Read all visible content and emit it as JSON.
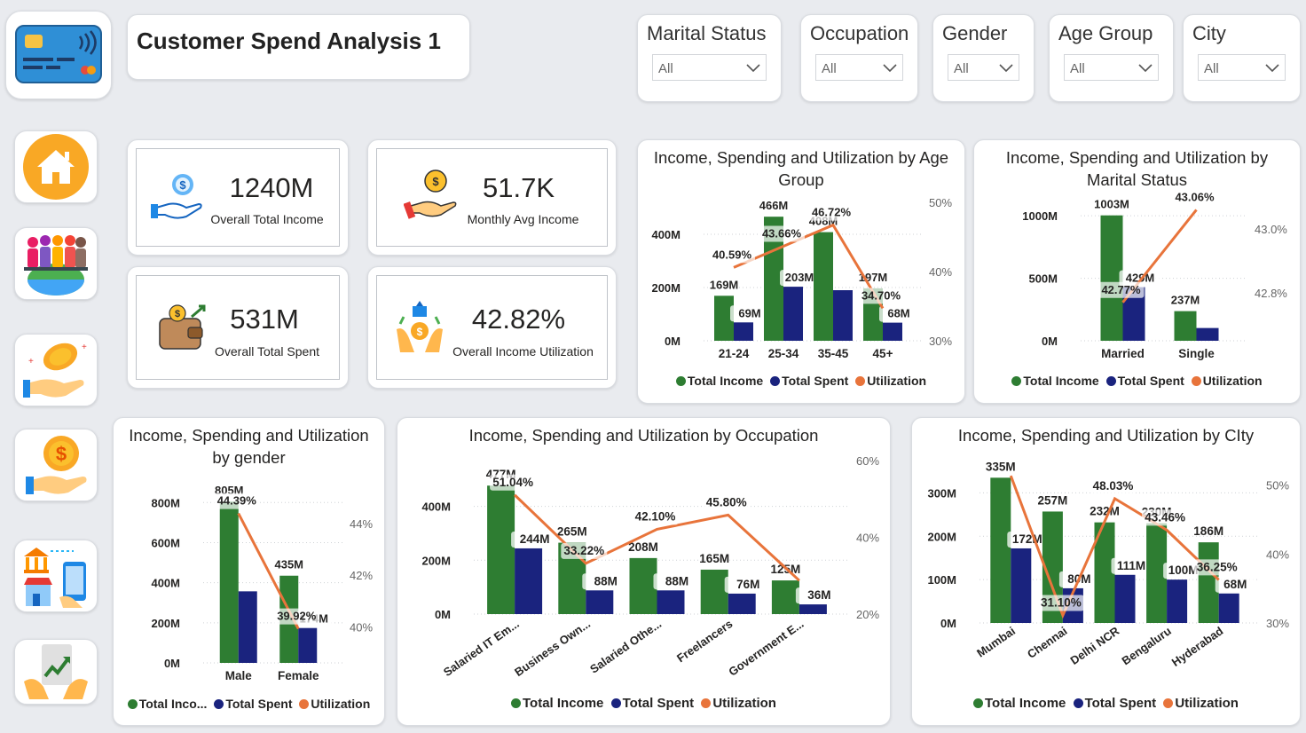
{
  "header": {
    "title": "Customer Spend Analysis 1"
  },
  "slicers": [
    {
      "label": "Marital Status",
      "value": "All"
    },
    {
      "label": "Occupation",
      "value": "All"
    },
    {
      "label": "Gender",
      "value": "All"
    },
    {
      "label": "Age Group",
      "value": "All"
    },
    {
      "label": "City",
      "value": "All"
    }
  ],
  "nav": [
    {
      "name": "credit-card-icon"
    },
    {
      "name": "home-icon"
    },
    {
      "name": "demographics-icon"
    },
    {
      "name": "coin-hand-icon"
    },
    {
      "name": "dollar-hand-icon"
    },
    {
      "name": "bank-mobile-icon"
    },
    {
      "name": "growth-chart-icon"
    }
  ],
  "kpis": [
    {
      "value": "1240M",
      "label": "Overall Total Income",
      "icon": "dollar-hand-icon"
    },
    {
      "value": "51.7K",
      "label": "Monthly Avg Income",
      "icon": "money-hand-icon"
    },
    {
      "value": "531M",
      "label": "Overall Total Spent",
      "icon": "wallet-icon"
    },
    {
      "value": "42.82%",
      "label": "Overall Income Utilization",
      "icon": "growth-hands-icon"
    }
  ],
  "legend": {
    "income": "Total Income",
    "spent": "Total Spent",
    "utilization": "Utilization",
    "income_short": "Total Inco..."
  },
  "colors": {
    "income": "#2e7d32",
    "spent": "#1a237e",
    "utilization": "#e8743b",
    "background": "#e9ebef"
  },
  "chart_data": [
    {
      "id": "age",
      "type": "bar",
      "title": "Income, Spending and Utilization by Age Group",
      "categories": [
        "21-24",
        "25-34",
        "35-45",
        "45+"
      ],
      "series": [
        {
          "name": "Total Income",
          "values": [
            169,
            466,
            408,
            197
          ],
          "labels": [
            "169M",
            "466M",
            "408M",
            "197M"
          ]
        },
        {
          "name": "Total Spent",
          "values": [
            69,
            203,
            190,
            68
          ],
          "labels": [
            "69M",
            "203M",
            "",
            "68M"
          ]
        },
        {
          "name": "Utilization",
          "type": "line",
          "values": [
            40.59,
            43.66,
            46.72,
            34.7
          ],
          "labels": [
            "40.59%",
            "43.66%",
            "46.72%",
            "34.70%"
          ]
        }
      ],
      "y_ticks": [
        "0M",
        "200M",
        "400M"
      ],
      "y2_ticks": [
        "30%",
        "40%",
        "50%"
      ],
      "ylim": [
        0,
        520
      ],
      "y2lim": [
        30,
        50
      ]
    },
    {
      "id": "marital",
      "type": "bar",
      "title": "Income, Spending and Utilization by Marital Status",
      "categories": [
        "Married",
        "Single"
      ],
      "series": [
        {
          "name": "Total Income",
          "values": [
            1003,
            237
          ],
          "labels": [
            "1003M",
            "237M"
          ]
        },
        {
          "name": "Total Spent",
          "values": [
            429,
            102
          ],
          "labels": [
            "429M",
            ""
          ]
        },
        {
          "name": "Utilization",
          "type": "line",
          "values": [
            42.77,
            43.06
          ],
          "labels": [
            "42.77%",
            "43.06%"
          ]
        }
      ],
      "y_ticks": [
        "0M",
        "500M",
        "1000M"
      ],
      "y2_ticks": [
        "42.8%",
        "43.0%"
      ],
      "ylim": [
        0,
        1150
      ],
      "y2lim": [
        42.65,
        43.1
      ]
    },
    {
      "id": "gender",
      "type": "bar",
      "title": "Income, Spending and Utilization by gender",
      "categories": [
        "Male",
        "Female"
      ],
      "series": [
        {
          "name": "Total Income",
          "values": [
            805,
            435
          ],
          "labels": [
            "805M",
            "435M"
          ]
        },
        {
          "name": "Total Spent",
          "values": [
            357,
            174
          ],
          "labels": [
            "",
            "174M"
          ]
        },
        {
          "name": "Utilization",
          "type": "line",
          "values": [
            44.39,
            39.92
          ],
          "labels": [
            "44.39%",
            "39.92%"
          ]
        }
      ],
      "y_ticks": [
        "0M",
        "200M",
        "400M",
        "600M",
        "800M"
      ],
      "y2_ticks": [
        "40%",
        "42%",
        "44%"
      ],
      "ylim": [
        0,
        850
      ],
      "y2lim": [
        38.6,
        45.2
      ]
    },
    {
      "id": "occupation",
      "type": "bar",
      "title": "Income, Spending and Utilization by Occupation",
      "categories": [
        "Salaried IT Em...",
        "Business Own...",
        "Salaried Othe...",
        "Freelancers",
        "Government E..."
      ],
      "series": [
        {
          "name": "Total Income",
          "values": [
            477,
            265,
            208,
            165,
            125
          ],
          "labels": [
            "477M",
            "265M",
            "208M",
            "165M",
            "125M"
          ]
        },
        {
          "name": "Total Spent",
          "values": [
            244,
            88,
            88,
            76,
            36
          ],
          "labels": [
            "244M",
            "88M",
            "88M",
            "76M",
            "36M"
          ]
        },
        {
          "name": "Utilization",
          "type": "line",
          "values": [
            51.04,
            33.22,
            42.1,
            45.8,
            28.74
          ],
          "labels": [
            "51.04%",
            "33.22%",
            "42.10%",
            "45.80%",
            ""
          ]
        }
      ],
      "y_ticks": [
        "0M",
        "200M",
        "400M"
      ],
      "y2_ticks": [
        "20%",
        "40%",
        "60%"
      ],
      "ylim": [
        0,
        570
      ],
      "y2lim": [
        20,
        60
      ]
    },
    {
      "id": "city",
      "type": "bar",
      "title": "Income, Spending and Utilization by CIty",
      "categories": [
        "Mumbai",
        "Chennai",
        "Delhi NCR",
        "Bengaluru",
        "Hyderabad"
      ],
      "series": [
        {
          "name": "Total Income",
          "values": [
            335,
            257,
            232,
            230,
            186
          ],
          "labels": [
            "335M",
            "257M",
            "232M",
            "230M",
            "186M"
          ]
        },
        {
          "name": "Total Spent",
          "values": [
            172,
            80,
            111,
            100,
            68
          ],
          "labels": [
            "172M",
            "80M",
            "111M",
            "100M",
            "68M"
          ]
        },
        {
          "name": "Utilization",
          "type": "line",
          "values": [
            51.34,
            31.1,
            48.03,
            43.46,
            36.25
          ],
          "labels": [
            "",
            "31.10%",
            "48.03%",
            "43.46%",
            "36.25%"
          ]
        }
      ],
      "y_ticks": [
        "0M",
        "100M",
        "200M",
        "300M"
      ],
      "y2_ticks": [
        "30%",
        "40%",
        "50%"
      ],
      "ylim": [
        0,
        350
      ],
      "y2lim": [
        30,
        52
      ]
    }
  ]
}
